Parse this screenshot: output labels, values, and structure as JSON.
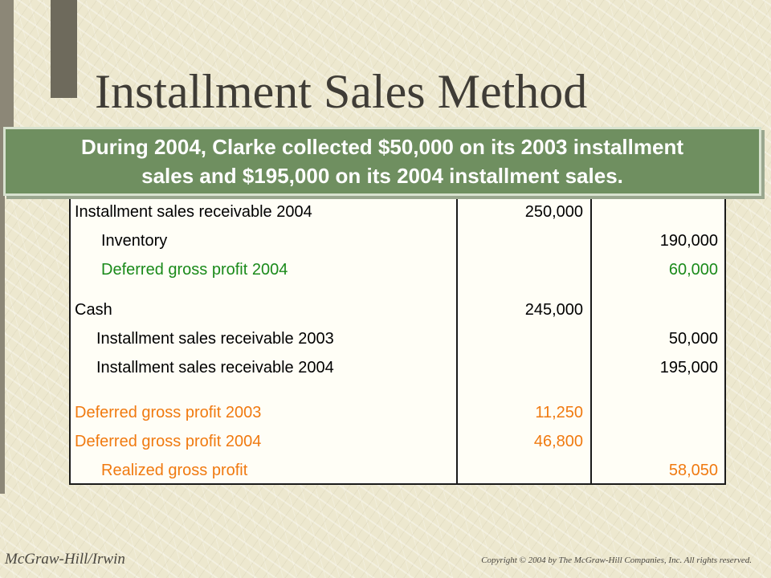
{
  "slide": {
    "title": "Installment Sales Method",
    "callout_line1": "During 2004, Clarke collected $50,000 on its 2003 installment",
    "callout_line2": "sales and $195,000 on its 2004 installment sales."
  },
  "ledger": {
    "rows": [
      {
        "account": "Installment sales receivable 2004",
        "debit": "250,000",
        "credit": "",
        "color": "black",
        "indent": 0
      },
      {
        "account": "Inventory",
        "debit": "",
        "credit": "190,000",
        "color": "black",
        "indent": 1
      },
      {
        "account": "Deferred gross profit 2004",
        "debit": "",
        "credit": "60,000",
        "color": "green",
        "indent": 1
      },
      {
        "account": "Cash",
        "debit": "245,000",
        "credit": "",
        "color": "black",
        "indent": 0
      },
      {
        "account": "Installment sales receivable 2003",
        "debit": "",
        "credit": "50,000",
        "color": "black",
        "indent": 2
      },
      {
        "account": "Installment sales receivable 2004",
        "debit": "",
        "credit": "195,000",
        "color": "black",
        "indent": 2
      },
      {
        "account": "Deferred gross profit 2003",
        "debit": "11,250",
        "credit": "",
        "color": "orange",
        "indent": 0
      },
      {
        "account": "Deferred gross profit 2004",
        "debit": "46,800",
        "credit": "",
        "color": "orange",
        "indent": 0
      },
      {
        "account": "Realized gross profit",
        "debit": "",
        "credit": "58,050",
        "color": "orange",
        "indent": 1
      }
    ],
    "colors": {
      "black": "#000000",
      "green": "#1a8a1a",
      "orange": "#f07a10"
    }
  },
  "footer": {
    "publisher": "McGraw-Hill/Irwin",
    "copyright": "Copyright © 2004 by The McGraw-Hill Companies, Inc.  All rights reserved."
  }
}
